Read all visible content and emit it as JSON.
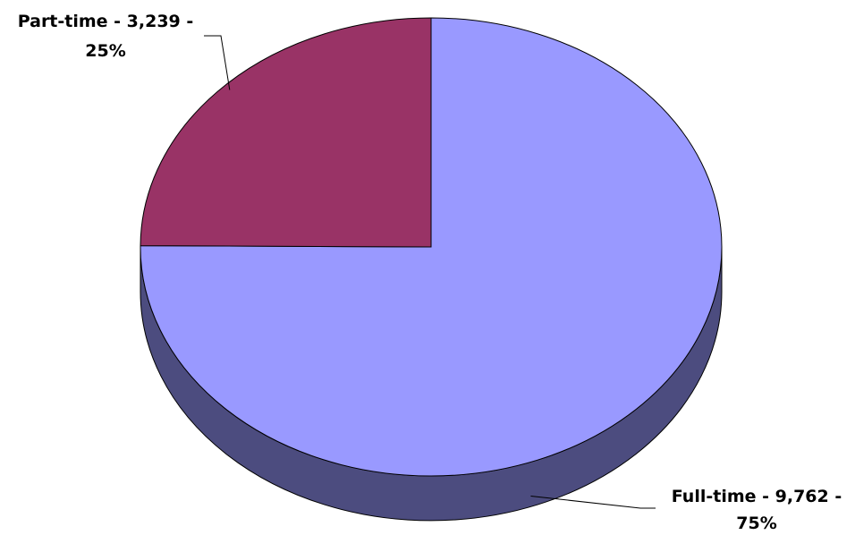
{
  "chart_data": {
    "type": "pie",
    "title": "",
    "three_d": true,
    "slices": [
      {
        "label": "Full-time",
        "value": 9762,
        "percent": 75,
        "color": "#9999ff",
        "side_color": "#4c4c7f"
      },
      {
        "label": "Part-time",
        "value": 3239,
        "percent": 25,
        "color": "#993366",
        "side_color": "#4d1a33"
      }
    ],
    "data_labels": [
      {
        "line1": "Full-time - 9,762 -",
        "line2": "75%"
      },
      {
        "line1": "Part-time - 3,239 -",
        "line2": "25%"
      }
    ],
    "legend": "none"
  }
}
